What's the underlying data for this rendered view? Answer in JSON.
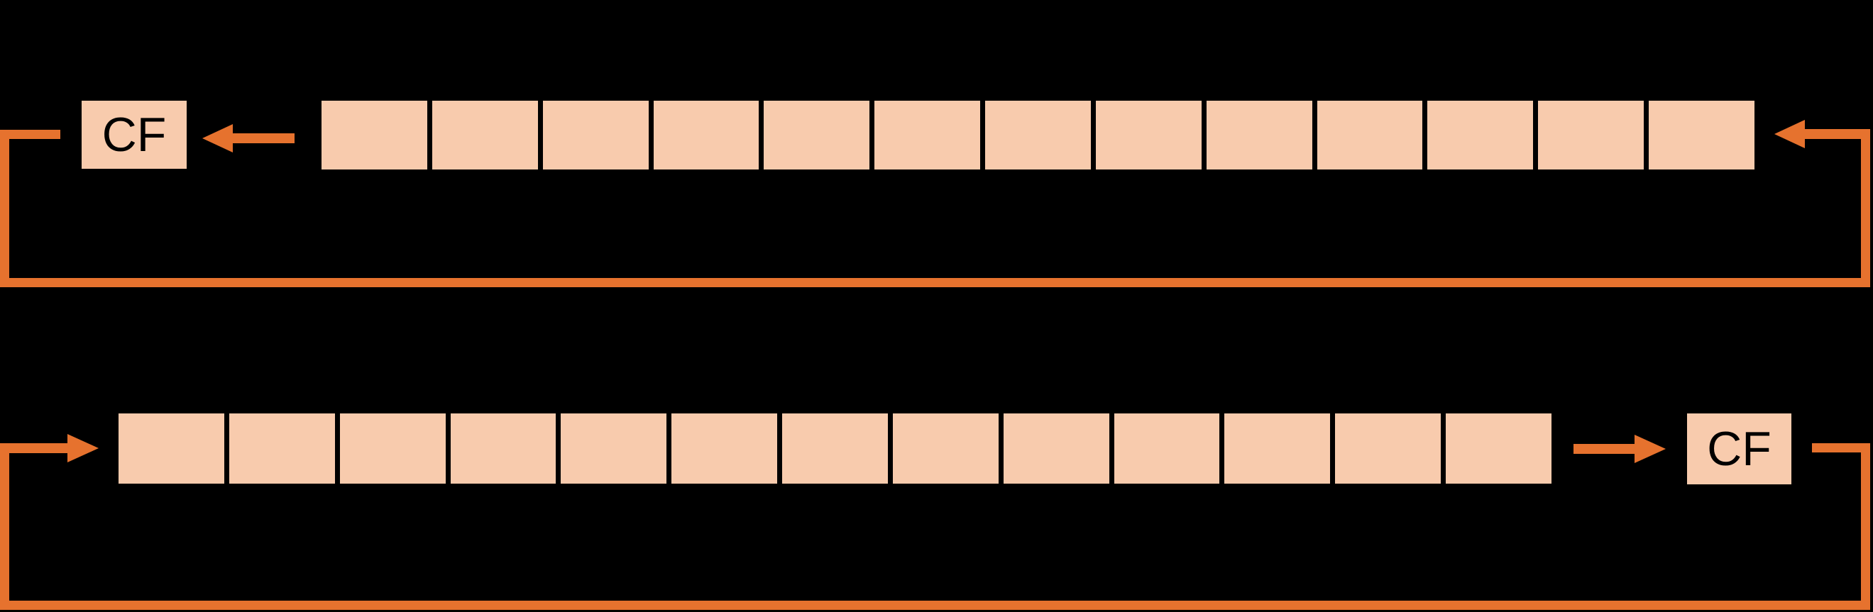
{
  "colors": {
    "background": "#000000",
    "cell_fill": "#F8CBAD",
    "arrow": "#E6722E",
    "cf_text": "#000000"
  },
  "top_diagram": {
    "cf_label": "CF",
    "cell_count": 13
  },
  "bottom_diagram": {
    "cf_label": "CF",
    "cell_count": 13
  }
}
